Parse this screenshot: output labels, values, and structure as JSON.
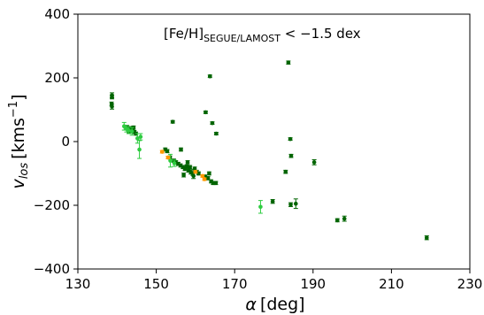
{
  "chart_data": {
    "type": "scatter",
    "title": "",
    "xlabel": {
      "symbol": "α",
      "unit": "[deg]"
    },
    "ylabel": {
      "symbol": "v",
      "subscript": "los",
      "unit": "[kms",
      "unit_sup": "−1",
      "unit_close": "]"
    },
    "annotation": {
      "pre": "[Fe/H]",
      "sub": "SEGUE/LAMOST",
      "post": " < −1.5 dex"
    },
    "xlim": [
      130,
      230
    ],
    "ylim": [
      -400,
      400
    ],
    "xticks": [
      "130",
      "150",
      "170",
      "190",
      "210",
      "230"
    ],
    "yticks": [
      "400",
      "200",
      "0",
      "−200",
      "−400"
    ],
    "xtick_values": [
      130,
      150,
      170,
      190,
      210,
      230
    ],
    "ytick_values": [
      400,
      200,
      0,
      -200,
      -400
    ],
    "grid": false,
    "series": [
      {
        "color": "#006400",
        "marker": "circle",
        "points": [
          [
            138.7,
            145,
            8
          ],
          [
            138.7,
            140,
            6
          ],
          [
            138.6,
            118,
            6
          ],
          [
            138.7,
            110,
            8
          ],
          [
            142.5,
            45,
            6
          ],
          [
            143.2,
            42,
            5
          ],
          [
            143.6,
            38,
            6
          ],
          [
            144.0,
            35,
            5
          ],
          [
            144.4,
            30,
            5
          ],
          [
            144.8,
            25,
            5
          ],
          [
            143.0,
            30,
            5
          ],
          [
            144.2,
            44,
            5
          ],
          [
            152.3,
            -25,
            5
          ],
          [
            152.8,
            -30,
            5
          ],
          [
            153.5,
            -50,
            5
          ],
          [
            154.5,
            -60,
            5
          ],
          [
            154.2,
            62,
            4
          ],
          [
            155.0,
            -65,
            5
          ],
          [
            155.6,
            -70,
            5
          ],
          [
            156.2,
            -75,
            5
          ],
          [
            156.8,
            -80,
            5
          ],
          [
            157.3,
            -85,
            6
          ],
          [
            157.8,
            -78,
            5
          ],
          [
            158.2,
            -90,
            6
          ],
          [
            158.8,
            -95,
            7
          ],
          [
            159.3,
            -100,
            6
          ],
          [
            159.5,
            -108,
            8
          ],
          [
            156.3,
            -25,
            5
          ],
          [
            157.0,
            -105,
            6
          ],
          [
            158.0,
            -65,
            5
          ],
          [
            158.6,
            -80,
            5
          ],
          [
            159.8,
            -85,
            5
          ],
          [
            160.3,
            -95,
            5
          ],
          [
            160.8,
            -100,
            5
          ],
          [
            162.5,
            -110,
            5
          ],
          [
            163.2,
            -115,
            5
          ],
          [
            163.5,
            -100,
            5
          ],
          [
            164.0,
            -125,
            5
          ],
          [
            164.5,
            -130,
            5
          ],
          [
            165.2,
            -130,
            5
          ],
          [
            162.6,
            92,
            4
          ],
          [
            163.7,
            205,
            4
          ],
          [
            164.3,
            58,
            4
          ],
          [
            165.3,
            25,
            4
          ],
          [
            179.7,
            -188,
            6
          ],
          [
            183.0,
            -95,
            5
          ],
          [
            183.7,
            248,
            5
          ],
          [
            184.2,
            8,
            4
          ],
          [
            184.4,
            -45,
            5
          ],
          [
            184.3,
            -198,
            6
          ],
          [
            185.6,
            -195,
            15
          ],
          [
            190.3,
            -65,
            8
          ],
          [
            196.2,
            -247,
            5
          ],
          [
            198.0,
            -242,
            8
          ],
          [
            219.0,
            -302,
            6
          ]
        ]
      },
      {
        "color": "#2ecc40",
        "marker": "circle",
        "points": [
          [
            141.8,
            48,
            12
          ],
          [
            142.4,
            40,
            10
          ],
          [
            143.0,
            35,
            10
          ],
          [
            143.8,
            32,
            12
          ],
          [
            145.2,
            10,
            15
          ],
          [
            145.7,
            -25,
            28
          ],
          [
            146.0,
            15,
            10
          ],
          [
            153.6,
            -60,
            20
          ],
          [
            154.6,
            -68,
            10
          ],
          [
            176.6,
            -205,
            20
          ]
        ]
      },
      {
        "color": "#ff9900",
        "marker": "circle",
        "points": [
          [
            151.5,
            -32,
            4
          ],
          [
            153.0,
            -50,
            4
          ],
          [
            160.0,
            -95,
            4
          ],
          [
            161.8,
            -108,
            4
          ],
          [
            162.3,
            -118,
            4
          ]
        ]
      }
    ]
  }
}
